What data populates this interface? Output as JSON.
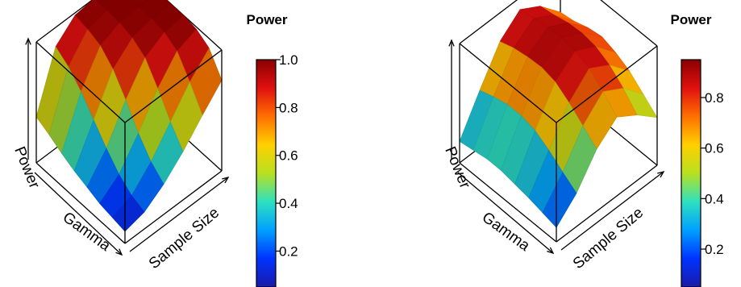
{
  "chart_data": [
    {
      "type": "surface3d",
      "title": "",
      "xlabel": "Gamma",
      "ylabel": "Sample Size",
      "zlabel": "Power",
      "legend": {
        "title": "Power",
        "ticks": [
          "0.2",
          "0.4",
          "0.6",
          "0.8",
          "1.0"
        ],
        "range": [
          0.05,
          1.0
        ],
        "palette": [
          "#1a1aa8",
          "#0033ff",
          "#00a0ff",
          "#2ee0c0",
          "#b8e020",
          "#ffd000",
          "#ff7000",
          "#e01010",
          "#8b0000"
        ]
      },
      "grid": {
        "gamma_levels": 8,
        "sample_levels": 6,
        "z": [
          [
            0.1,
            0.14,
            0.25,
            0.4,
            0.58,
            0.75
          ],
          [
            0.12,
            0.18,
            0.34,
            0.55,
            0.76,
            0.92
          ],
          [
            0.14,
            0.26,
            0.48,
            0.73,
            0.92,
            0.98
          ],
          [
            0.18,
            0.38,
            0.66,
            0.89,
            0.98,
            1.0
          ],
          [
            0.22,
            0.52,
            0.82,
            0.96,
            1.0,
            1.0
          ],
          [
            0.27,
            0.66,
            0.92,
            0.99,
            1.0,
            1.0
          ],
          [
            0.33,
            0.77,
            0.96,
            1.0,
            1.0,
            1.0
          ],
          [
            0.38,
            0.84,
            0.98,
            1.0,
            1.0,
            1.0
          ]
        ]
      }
    },
    {
      "type": "surface3d",
      "title": "",
      "xlabel": "Gamma",
      "ylabel": "Sample Size",
      "zlabel": "Power",
      "legend": {
        "title": "Power",
        "ticks": [
          "0.2",
          "0.4",
          "0.6",
          "0.8"
        ],
        "range": [
          0.05,
          0.95
        ],
        "palette": [
          "#1a1aa8",
          "#0033ff",
          "#00a0ff",
          "#2ee0c0",
          "#b8e020",
          "#ffd000",
          "#ff7000",
          "#e01010",
          "#8b0000"
        ]
      },
      "grid": {
        "gamma_levels": 8,
        "sample_levels": 6,
        "z": [
          [
            0.12,
            0.28,
            0.52,
            0.66,
            0.55,
            0.4
          ],
          [
            0.15,
            0.36,
            0.62,
            0.78,
            0.68,
            0.5
          ],
          [
            0.18,
            0.45,
            0.72,
            0.88,
            0.78,
            0.6
          ],
          [
            0.2,
            0.52,
            0.8,
            0.93,
            0.84,
            0.66
          ],
          [
            0.22,
            0.55,
            0.83,
            0.95,
            0.86,
            0.7
          ],
          [
            0.22,
            0.55,
            0.82,
            0.94,
            0.85,
            0.68
          ],
          [
            0.2,
            0.52,
            0.8,
            0.92,
            0.82,
            0.64
          ],
          [
            0.18,
            0.48,
            0.76,
            0.9,
            0.8,
            0.62
          ]
        ]
      }
    }
  ]
}
